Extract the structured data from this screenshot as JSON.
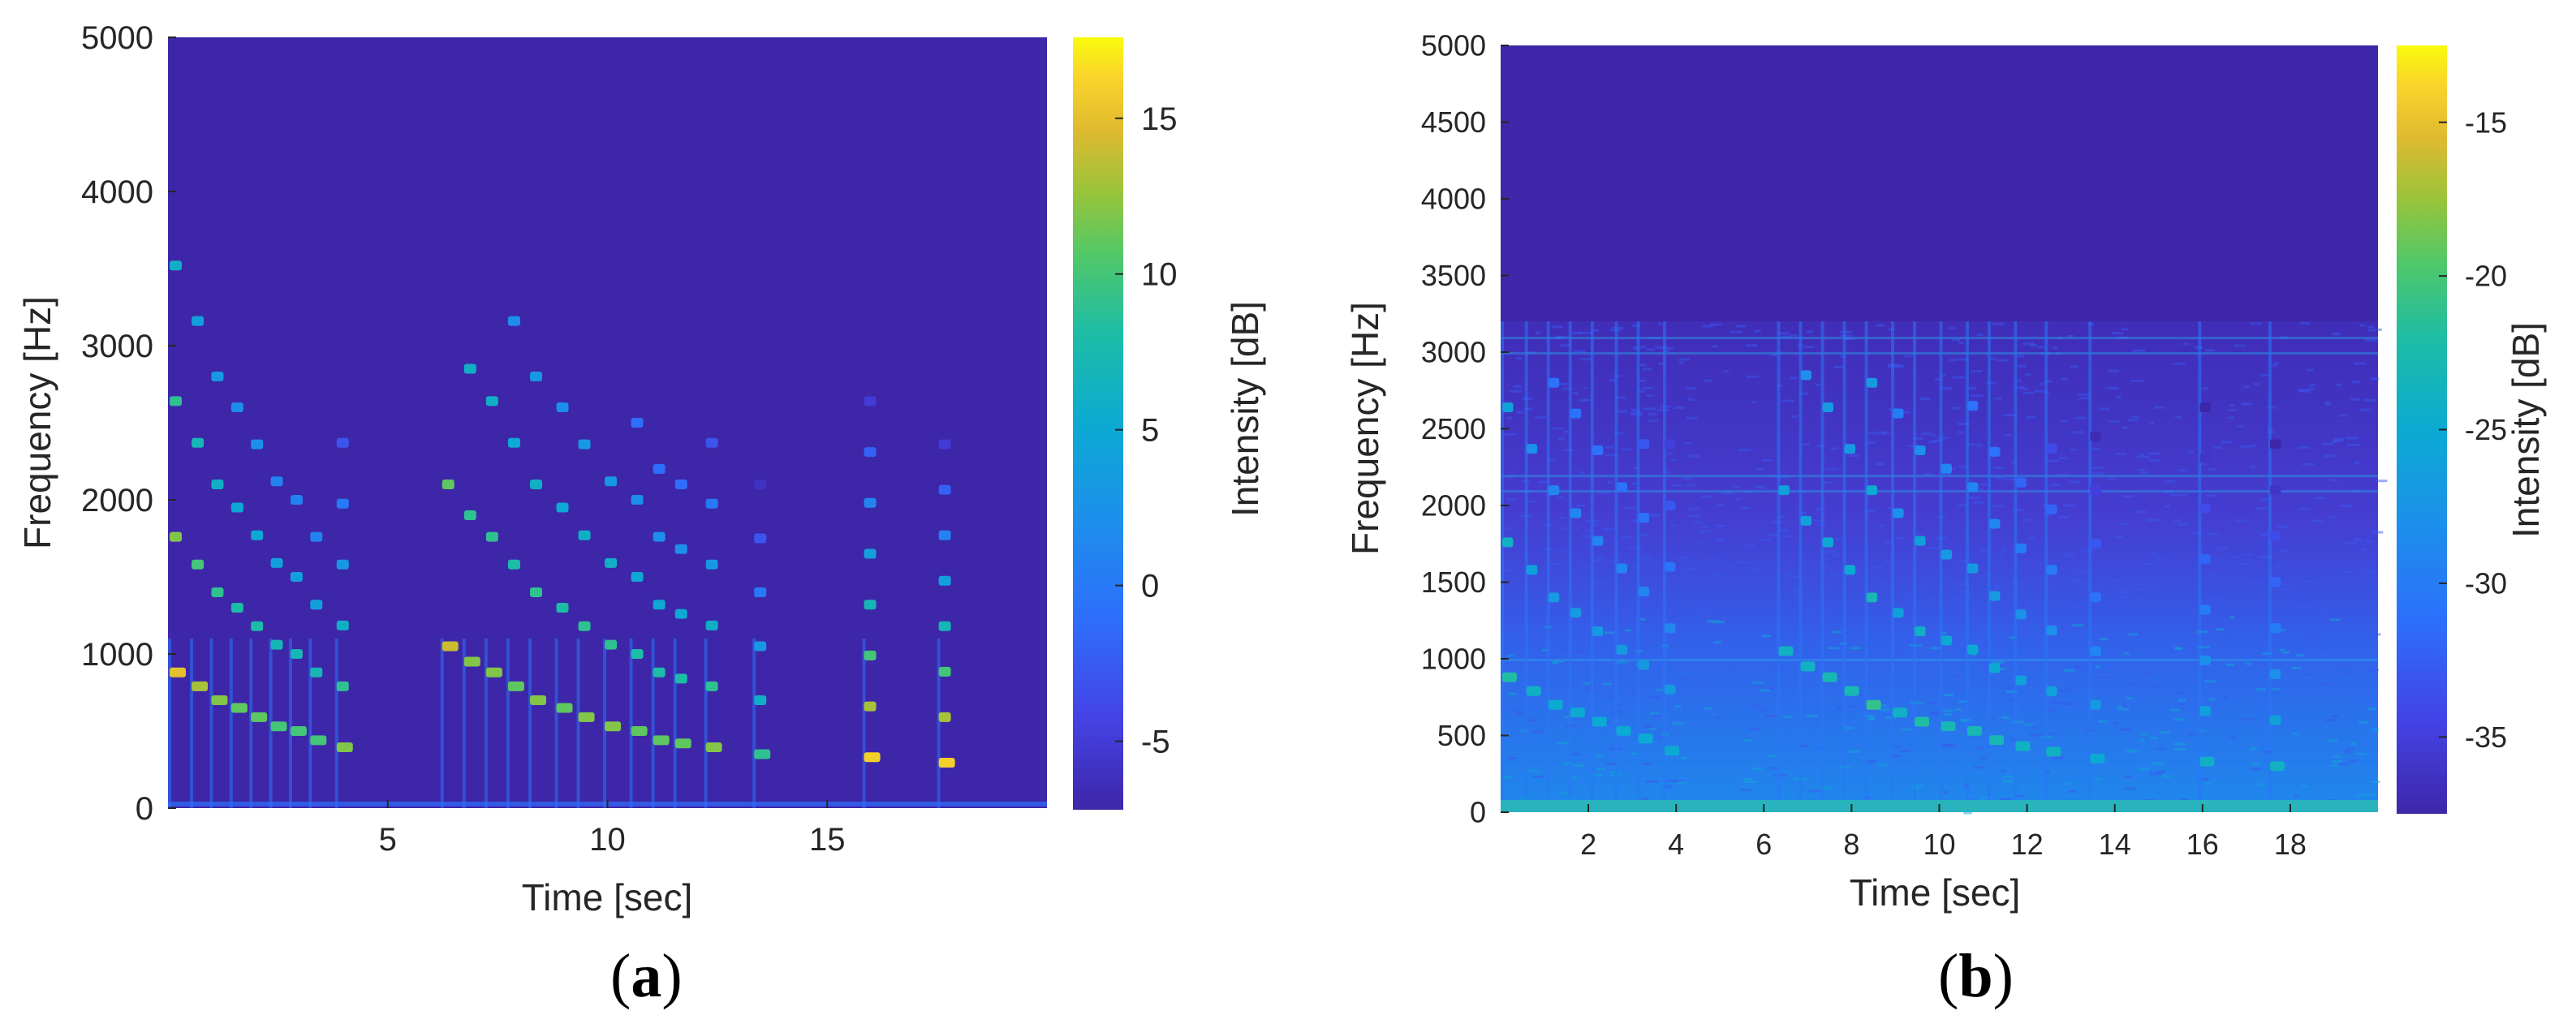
{
  "chart_data": [
    {
      "type": "heatmap",
      "panel_label": "a",
      "xlabel": "Time [sec]",
      "ylabel": "Frequency [Hz]",
      "xlim": [
        0,
        20
      ],
      "ylim": [
        0,
        5000
      ],
      "xticks": [
        5,
        10,
        15
      ],
      "yticks": [
        0,
        1000,
        2000,
        3000,
        4000,
        5000
      ],
      "colorbar": {
        "label": "Intensity [dB]",
        "range": [
          -7.2,
          17.6
        ],
        "ticks": [
          -5,
          0,
          5,
          10,
          15
        ]
      },
      "background_level": -6.5,
      "notes": [
        {
          "t": 0.0,
          "f0": 880,
          "level": 15,
          "harmonics": 4
        },
        {
          "t": 0.5,
          "f0": 790,
          "level": 13,
          "harmonics": 4
        },
        {
          "t": 0.95,
          "f0": 700,
          "level": 12,
          "harmonics": 4
        },
        {
          "t": 1.4,
          "f0": 650,
          "level": 11,
          "harmonics": 4
        },
        {
          "t": 1.85,
          "f0": 590,
          "level": 11,
          "harmonics": 4
        },
        {
          "t": 2.3,
          "f0": 530,
          "level": 10,
          "harmonics": 4
        },
        {
          "t": 2.75,
          "f0": 500,
          "level": 10,
          "harmonics": 4
        },
        {
          "t": 3.2,
          "f0": 440,
          "level": 10,
          "harmonics": 4
        },
        {
          "t": 3.8,
          "f0": 395,
          "level": 12,
          "harmonics": 6
        },
        {
          "t": 6.2,
          "f0": 1050,
          "level": 14,
          "harmonics": 2
        },
        {
          "t": 6.7,
          "f0": 950,
          "level": 12,
          "harmonics": 3
        },
        {
          "t": 7.2,
          "f0": 880,
          "level": 12,
          "harmonics": 3
        },
        {
          "t": 7.7,
          "f0": 790,
          "level": 11,
          "harmonics": 4
        },
        {
          "t": 8.2,
          "f0": 700,
          "level": 12,
          "harmonics": 4
        },
        {
          "t": 8.8,
          "f0": 650,
          "level": 11,
          "harmonics": 4
        },
        {
          "t": 9.3,
          "f0": 590,
          "level": 12,
          "harmonics": 4
        },
        {
          "t": 9.9,
          "f0": 530,
          "level": 12,
          "harmonics": 4
        },
        {
          "t": 10.5,
          "f0": 500,
          "level": 11,
          "harmonics": 5
        },
        {
          "t": 11.0,
          "f0": 440,
          "level": 11,
          "harmonics": 5
        },
        {
          "t": 11.5,
          "f0": 420,
          "level": 11,
          "harmonics": 5
        },
        {
          "t": 12.2,
          "f0": 395,
          "level": 12,
          "harmonics": 6
        },
        {
          "t": 13.3,
          "f0": 350,
          "level": 9,
          "harmonics": 8
        },
        {
          "t": 15.8,
          "f0": 330,
          "level": 16,
          "harmonics": 8
        },
        {
          "t": 17.5,
          "f0": 295,
          "level": 16,
          "harmonics": 8
        }
      ]
    },
    {
      "type": "heatmap",
      "panel_label": "b",
      "xlabel": "Time [sec]",
      "ylabel": "Frequency [Hz]",
      "xlim": [
        0,
        20
      ],
      "ylim": [
        0,
        5000
      ],
      "xticks": [
        2,
        4,
        6,
        8,
        10,
        12,
        14,
        16,
        18
      ],
      "yticks": [
        0,
        500,
        1000,
        1500,
        2000,
        2500,
        3000,
        3500,
        4000,
        4500,
        5000
      ],
      "colorbar": {
        "label": "Intensity [dB]",
        "range": [
          -37.5,
          -12.5
        ],
        "ticks": [
          -35,
          -30,
          -25,
          -20,
          -15
        ]
      },
      "background_level": -36.5,
      "noise_ceiling_hz": 3200,
      "notes": [
        {
          "t": 0.0,
          "f0": 880,
          "level": -22,
          "harmonics": 3
        },
        {
          "t": 0.55,
          "f0": 790,
          "level": -24,
          "harmonics": 3
        },
        {
          "t": 1.05,
          "f0": 700,
          "level": -25,
          "harmonics": 4
        },
        {
          "t": 1.55,
          "f0": 650,
          "level": -25,
          "harmonics": 4
        },
        {
          "t": 2.05,
          "f0": 590,
          "level": -25,
          "harmonics": 4
        },
        {
          "t": 2.6,
          "f0": 530,
          "level": -25,
          "harmonics": 4
        },
        {
          "t": 3.1,
          "f0": 480,
          "level": -25,
          "harmonics": 5
        },
        {
          "t": 3.7,
          "f0": 400,
          "level": -25,
          "harmonics": 6
        },
        {
          "t": 6.3,
          "f0": 1050,
          "level": -24,
          "harmonics": 2
        },
        {
          "t": 6.8,
          "f0": 950,
          "level": -24,
          "harmonics": 3
        },
        {
          "t": 7.3,
          "f0": 880,
          "level": -23,
          "harmonics": 3
        },
        {
          "t": 7.8,
          "f0": 790,
          "level": -23,
          "harmonics": 3
        },
        {
          "t": 8.3,
          "f0": 700,
          "level": -21,
          "harmonics": 4
        },
        {
          "t": 8.9,
          "f0": 650,
          "level": -24,
          "harmonics": 4
        },
        {
          "t": 9.4,
          "f0": 590,
          "level": -22,
          "harmonics": 4
        },
        {
          "t": 10.0,
          "f0": 560,
          "level": -23,
          "harmonics": 4
        },
        {
          "t": 10.6,
          "f0": 530,
          "level": -23,
          "harmonics": 5
        },
        {
          "t": 11.1,
          "f0": 470,
          "level": -23,
          "harmonics": 5
        },
        {
          "t": 11.7,
          "f0": 430,
          "level": -24,
          "harmonics": 5
        },
        {
          "t": 12.4,
          "f0": 395,
          "level": -24,
          "harmonics": 6
        },
        {
          "t": 13.4,
          "f0": 350,
          "level": -25,
          "harmonics": 7
        },
        {
          "t": 15.9,
          "f0": 330,
          "level": -24,
          "harmonics": 8
        },
        {
          "t": 17.5,
          "f0": 300,
          "level": -24,
          "harmonics": 8
        }
      ]
    }
  ]
}
